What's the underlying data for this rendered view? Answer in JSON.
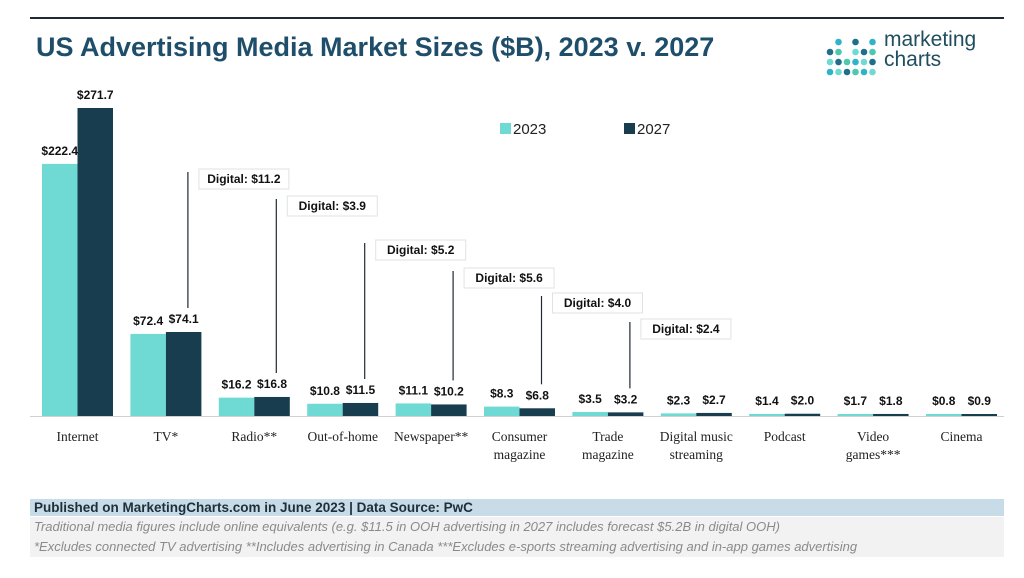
{
  "colors": {
    "series_2023": "#6fdad3",
    "series_2027": "#173d4e",
    "title": "#1f4e6b",
    "footer_bar": "#c7dce6",
    "callout_line": "#1d2a33"
  },
  "header": {
    "title": "US Advertising Media Market Sizes ($B), 2023 v. 2027",
    "logo_line1": "marketing",
    "logo_line2": "charts"
  },
  "footer": {
    "source": "Published on MarketingCharts.com in June 2023 | Data Source: PwC",
    "note1": "Traditional media figures include online equivalents (e.g. $11.5 in OOH advertising in 2027 includes forecast $5.2B in digital OOH)",
    "note2": "*Excludes connected TV advertising **Includes advertising in Canada ***Excludes e-sports streaming advertising and in-app games advertising"
  },
  "chart_data": {
    "type": "bar",
    "title": "US Advertising Media Market Sizes ($B), 2023 v. 2027",
    "categories": [
      "Internet",
      "TV*",
      "Radio**",
      "Out-of-home",
      "Newspaper**",
      "Consumer magazine",
      "Trade magazine",
      "Digital music streaming",
      "Podcast",
      "Video games***",
      "Cinema"
    ],
    "series": [
      {
        "name": "2023",
        "values": [
          222.4,
          72.4,
          16.2,
          10.8,
          11.1,
          8.3,
          3.5,
          2.3,
          1.4,
          1.7,
          0.8
        ],
        "labels": [
          "$222.4",
          "$72.4",
          "$16.2",
          "$10.8",
          "$11.1",
          "$8.3",
          "$3.5",
          "$2.3",
          "$1.4",
          "$1.7",
          "$0.8"
        ]
      },
      {
        "name": "2027",
        "values": [
          271.7,
          74.1,
          16.8,
          11.5,
          10.2,
          6.8,
          3.2,
          2.7,
          2.0,
          1.8,
          0.9
        ],
        "labels": [
          "$271.7",
          "$74.1",
          "$16.8",
          "$11.5",
          "$10.2",
          "$6.8",
          "$3.2",
          "$2.7",
          "$2.0",
          "$1.8",
          "$0.9"
        ]
      }
    ],
    "annotations": [
      {
        "category": "TV*",
        "text": "Digital: $11.2"
      },
      {
        "category": "Radio**",
        "text": "Digital: $3.9"
      },
      {
        "category": "Out-of-home",
        "text": "Digital: $5.2"
      },
      {
        "category": "Newspaper**",
        "text": "Digital: $5.6"
      },
      {
        "category": "Consumer magazine",
        "text": "Digital: $4.0"
      },
      {
        "category": "Trade magazine",
        "text": "Digital: $2.4"
      }
    ],
    "ylim": [
      0,
      280
    ],
    "grid": false,
    "legend": "top-right"
  }
}
